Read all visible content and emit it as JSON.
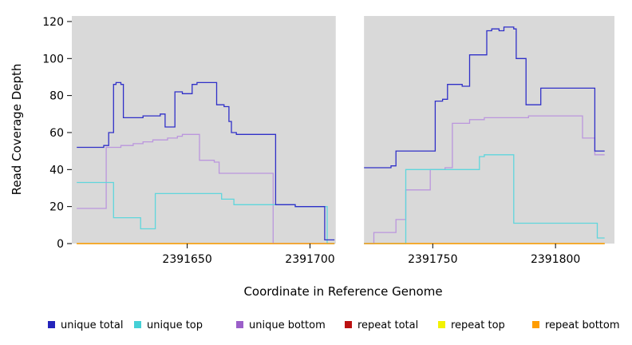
{
  "chart_data": {
    "type": "line",
    "subtype": "step",
    "title": "",
    "xlabel": "Coordinate in Reference Genome",
    "ylabel": "Read Coverage Depth",
    "xlim": [
      2391603,
      2391824
    ],
    "ylim": [
      0,
      123
    ],
    "x_ticks": [
      2391650,
      2391700,
      2391750,
      2391800
    ],
    "y_ticks": [
      0,
      20,
      40,
      60,
      80,
      100,
      120
    ],
    "grid": false,
    "panel_background": "#d9d9d9",
    "gap_region": [
      2391710.5,
      2391722
    ],
    "legend_position": "bottom",
    "series": [
      {
        "name": "repeat total",
        "color": "#bb1111",
        "segments": [
          [
            [
              2391605,
              0
            ],
            [
              2391710,
              0
            ]
          ],
          [
            [
              2391722,
              0
            ],
            [
              2391820,
              0
            ]
          ]
        ]
      },
      {
        "name": "repeat top",
        "color": "#f2f200",
        "segments": [
          [
            [
              2391605,
              0
            ],
            [
              2391710,
              0
            ]
          ],
          [
            [
              2391722,
              0
            ],
            [
              2391820,
              0
            ]
          ]
        ]
      },
      {
        "name": "unique bottom",
        "color": "#bb96dd",
        "segments": [
          [
            [
              2391605,
              19
            ],
            [
              2391617,
              52
            ],
            [
              2391623,
              53
            ],
            [
              2391628,
              54
            ],
            [
              2391632,
              55
            ],
            [
              2391636,
              56
            ],
            [
              2391642,
              57
            ],
            [
              2391646,
              58
            ],
            [
              2391648,
              59
            ],
            [
              2391655,
              45
            ],
            [
              2391661,
              44
            ],
            [
              2391663,
              38
            ],
            [
              2391685,
              0
            ],
            [
              2391710,
              0
            ]
          ],
          [
            [
              2391722,
              0
            ],
            [
              2391726,
              6
            ],
            [
              2391735,
              13
            ],
            [
              2391739,
              29
            ],
            [
              2391749,
              40
            ],
            [
              2391755,
              41
            ],
            [
              2391758,
              65
            ],
            [
              2391765,
              67
            ],
            [
              2391771,
              68
            ],
            [
              2391789,
              69
            ],
            [
              2391811,
              57
            ],
            [
              2391816,
              48
            ],
            [
              2391820,
              48
            ]
          ]
        ]
      },
      {
        "name": "unique top",
        "color": "#5fd6dc",
        "segments": [
          [
            [
              2391605,
              33
            ],
            [
              2391620,
              14
            ],
            [
              2391631,
              8
            ],
            [
              2391637,
              27
            ],
            [
              2391664,
              24
            ],
            [
              2391669,
              21
            ],
            [
              2391694,
              20
            ],
            [
              2391707,
              0
            ],
            [
              2391710,
              0
            ]
          ],
          [
            [
              2391722,
              0
            ],
            [
              2391739,
              40
            ],
            [
              2391769,
              47
            ],
            [
              2391771,
              48
            ],
            [
              2391783,
              11
            ],
            [
              2391816,
              11
            ],
            [
              2391817,
              3
            ],
            [
              2391820,
              3
            ]
          ]
        ]
      },
      {
        "name": "repeat bottom",
        "color": "#ff9d00",
        "segments": [
          [
            [
              2391605,
              0
            ],
            [
              2391710,
              0
            ]
          ],
          [
            [
              2391722,
              0
            ],
            [
              2391820,
              0
            ]
          ]
        ]
      },
      {
        "name": "unique total",
        "color": "#3030c8",
        "segments": [
          [
            [
              2391605,
              52
            ],
            [
              2391616,
              53
            ],
            [
              2391618,
              60
            ],
            [
              2391620,
              86
            ],
            [
              2391621,
              87
            ],
            [
              2391623,
              86
            ],
            [
              2391624,
              68
            ],
            [
              2391632,
              69
            ],
            [
              2391639,
              70
            ],
            [
              2391641,
              63
            ],
            [
              2391645,
              82
            ],
            [
              2391648,
              81
            ],
            [
              2391652,
              86
            ],
            [
              2391654,
              87
            ],
            [
              2391662,
              75
            ],
            [
              2391665,
              74
            ],
            [
              2391667,
              66
            ],
            [
              2391668,
              60
            ],
            [
              2391670,
              59
            ],
            [
              2391686,
              21
            ],
            [
              2391694,
              20
            ],
            [
              2391706,
              2
            ],
            [
              2391710,
              2
            ]
          ],
          [
            [
              2391722,
              41
            ],
            [
              2391733,
              42
            ],
            [
              2391735,
              50
            ],
            [
              2391751,
              77
            ],
            [
              2391754,
              78
            ],
            [
              2391756,
              86
            ],
            [
              2391762,
              85
            ],
            [
              2391765,
              102
            ],
            [
              2391772,
              115
            ],
            [
              2391774,
              116
            ],
            [
              2391777,
              115
            ],
            [
              2391779,
              117
            ],
            [
              2391783,
              116
            ],
            [
              2391784,
              100
            ],
            [
              2391788,
              75
            ],
            [
              2391794,
              84
            ],
            [
              2391816,
              50
            ],
            [
              2391820,
              50
            ]
          ]
        ]
      }
    ],
    "legend": {
      "items": [
        {
          "label": "unique total",
          "color": "#2424bb"
        },
        {
          "label": "unique top",
          "color": "#45d0d6"
        },
        {
          "label": "unique bottom",
          "color": "#9b5fc9"
        },
        {
          "label": "repeat total",
          "color": "#bb1111"
        },
        {
          "label": "repeat top",
          "color": "#f2f200"
        },
        {
          "label": "repeat bottom",
          "color": "#ff9d00"
        }
      ]
    }
  }
}
